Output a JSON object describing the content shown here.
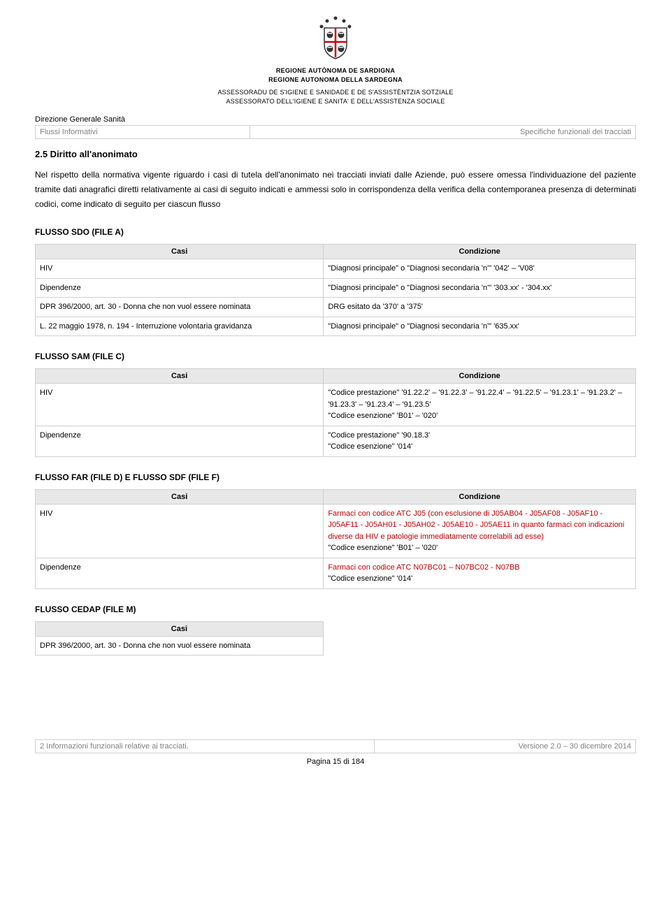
{
  "header": {
    "region_line1": "REGIONE AUTÒNOMA DE SARDIGNA",
    "region_line2": "REGIONE AUTONOMA DELLA SARDEGNA",
    "assess_line1": "ASSESSORADU DE S'IGIENE E SANIDADE E DE S'ASSISTÈNTZIA SOTZIALE",
    "assess_line2": "ASSESSORATO DELL'IGIENE E SANITA' E DELL'ASSISTENZA SOCIALE",
    "dir": "Direzione Generale Sanità",
    "flussi": "Flussi Informativi",
    "spec": "Specifiche funzionali dei tracciati"
  },
  "section": {
    "title": "2.5 Diritto all'anonimato",
    "para": "Nel rispetto della normativa vigente riguardo i casi di tutela dell'anonimato nei tracciati inviati dalle Aziende, può essere omessa l'individuazione del paziente tramite dati anagrafici diretti relativamente ai casi di seguito indicati e ammessi solo in corrispondenza della verifica della contemporanea presenza di determinati codici, come indicato di seguito per ciascun flusso"
  },
  "tables": {
    "header_casi": "Casi",
    "header_cond": "Condizione",
    "sdo": {
      "title": "FLUSSO SDO (FILE A)",
      "rows": [
        {
          "c": "HIV",
          "d": "\"Diagnosi principale\" o \"Diagnosi secondaria 'n'\" '042' – 'V08'"
        },
        {
          "c": "Dipendenze",
          "d": "\"Diagnosi principale\" o \"Diagnosi secondaria 'n'\" '303.xx' - '304.xx'"
        },
        {
          "c": "DPR 396/2000, art. 30 - Donna che non vuol essere nominata",
          "d": "DRG esitato da '370' a '375'"
        },
        {
          "c": "L. 22 maggio 1978, n. 194 - Interruzione volontaria gravidanza",
          "d": "\"Diagnosi principale\" o \"Diagnosi secondaria 'n'\" '635.xx'"
        }
      ]
    },
    "sam": {
      "title": "FLUSSO SAM (FILE C)",
      "rows": [
        {
          "c": "HIV",
          "d": "\"Codice prestazione\" '91.22.2' – '91.22.3' – '91.22.4' – '91.22.5' – '91.23.1' – '91.23.2' – '91.23.3' – '91.23.4' – '91.23.5'\n\"Codice esenzione\" 'B01' – '020'"
        },
        {
          "c": "Dipendenze",
          "d": "\"Codice prestazione\" '90.18.3'\n\"Codice esenzione\" '014'"
        }
      ]
    },
    "far": {
      "title": "FLUSSO FAR (FILE D) E FLUSSO SDF (FILE F)",
      "rows": [
        {
          "c": "HIV",
          "r": "Farmaci con codice ATC J05 (con esclusione di J05AB04 - J05AF08 - J05AF10 - J05AF11 - J05AH01 - J05AH02 - J05AE10 - J05AE11 in quanto farmaci con indicazioni diverse da HIV e patologie immediatamente correlabili ad esse)",
          "d": "\"Codice esenzione\" 'B01' – '020'"
        },
        {
          "c": "Dipendenze",
          "r": "Farmaci con codice ATC N07BC01 – N07BC02 - N07BB",
          "d": "\"Codice esenzione\" '014'"
        }
      ]
    },
    "cedap": {
      "title": "FLUSSO CEDAP (FILE M)",
      "rows": [
        {
          "c": "DPR 396/2000, art. 30 - Donna che non vuol essere nominata"
        }
      ]
    }
  },
  "footer": {
    "left": "2 Informazioni funzionali relative ai tracciati.",
    "right": "Versione 2.0 – 30 dicembre 2014",
    "page": "Pagina 15 di 184"
  }
}
